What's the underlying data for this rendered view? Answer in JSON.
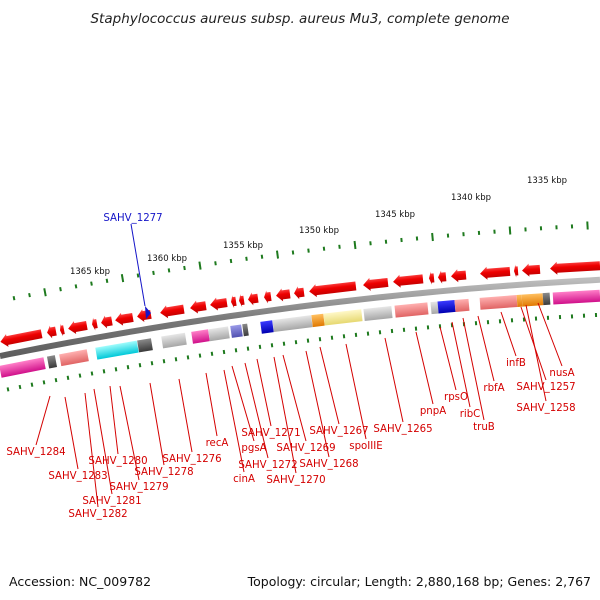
{
  "title": "Staphylococcus aureus subsp. aureus Mu3, complete genome",
  "footer": {
    "accession": "Accession: NC_009782",
    "summary": "Topology: circular; Length: 2,880,168 bp; Genes: 2,767"
  },
  "highlighted_gene": "SAHV_1277",
  "colors": {
    "forward_gene": "#ee0000",
    "label": "#d40000",
    "highlight": "#1515c8",
    "backbone": "#8a8a8a",
    "tick": "#1e7a1e"
  },
  "scale_labels": [
    "1365 kbp",
    "1360 kbp",
    "1355 kbp",
    "1350 kbp",
    "1345 kbp",
    "1340 kbp",
    "1335 kbp"
  ],
  "gene_labels": [
    "SAHV_1284",
    "SAHV_1283",
    "SAHV_1282",
    "SAHV_1281",
    "SAHV_1280",
    "SAHV_1279",
    "SAHV_1278",
    "SAHV_1276",
    "recA",
    "cinA",
    "pgsA",
    "SAHV_1272",
    "SAHV_1271",
    "SAHV_1270",
    "SAHV_1269",
    "SAHV_1268",
    "SAHV_1267",
    "spoIIIE",
    "SAHV_1265",
    "pnpA",
    "rpsO",
    "ribC",
    "truB",
    "rbfA",
    "infB",
    "SAHV_1257",
    "SAHV_1258",
    "nusA"
  ]
}
